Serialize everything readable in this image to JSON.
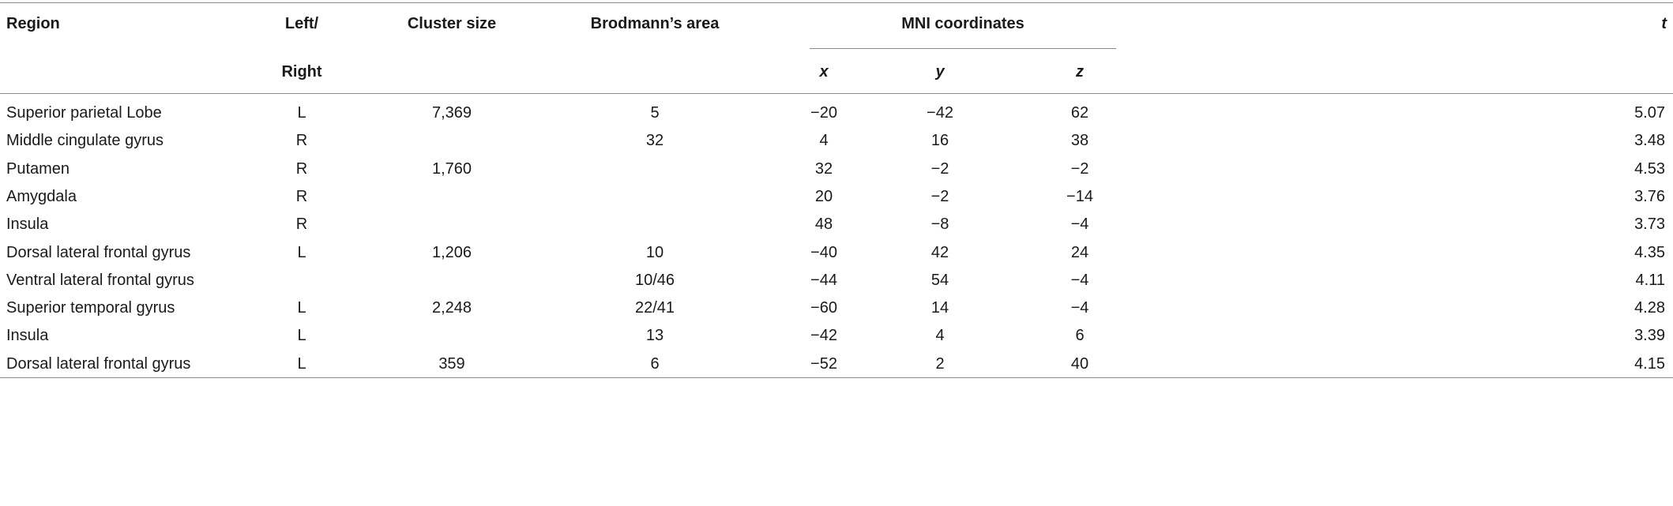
{
  "table": {
    "header": {
      "region": "Region",
      "side": [
        "Left/",
        "Right"
      ],
      "cluster": "Cluster size",
      "brodmann": "Brodmann’s area",
      "mni": "MNI coordinates",
      "x": "x",
      "y": "y",
      "z": "z",
      "t": "t"
    },
    "rows": [
      [
        "Superior parietal Lobe",
        "L",
        "7,369",
        "5",
        "−20",
        "−42",
        "62",
        "5.07"
      ],
      [
        "Middle cingulate gyrus",
        "R",
        null,
        "32",
        "4",
        "16",
        "38",
        "3.48"
      ],
      [
        "Putamen",
        "R",
        "1,760",
        null,
        "32",
        "−2",
        "−2",
        "4.53"
      ],
      [
        "Amygdala",
        "R",
        null,
        null,
        "20",
        "−2",
        "−14",
        "3.76"
      ],
      [
        "Insula",
        "R",
        null,
        null,
        "48",
        "−8",
        "−4",
        "3.73"
      ],
      [
        "Dorsal lateral frontal gyrus",
        "L",
        "1,206",
        "10",
        "−40",
        "42",
        "24",
        "4.35"
      ],
      [
        "Ventral lateral frontal gyrus",
        null,
        null,
        "10/46",
        "−44",
        "54",
        "−4",
        "4.11"
      ],
      [
        "Superior temporal gyrus",
        "L",
        "2,248",
        "22/41",
        "−60",
        "14",
        "−4",
        "4.28"
      ],
      [
        "Insula",
        "L",
        null,
        "13",
        "−42",
        "4",
        "6",
        "3.39"
      ],
      [
        "Dorsal lateral frontal gyrus",
        "L",
        "359",
        "6",
        "−52",
        "2",
        "40",
        "4.15"
      ]
    ]
  }
}
